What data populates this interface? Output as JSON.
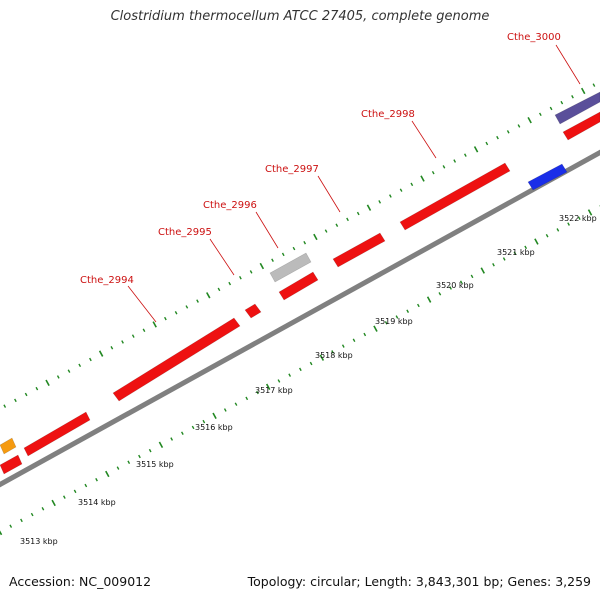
{
  "title": "Clostridium thermocellum ATCC 27405, complete genome",
  "footer": {
    "accession": "Accession: NC_009012",
    "summary": "Topology: circular; Length: 3,843,301 bp; Genes: 3,259"
  },
  "colors": {
    "cds": "#ee1111",
    "pseudo": "#bbbbbb",
    "rna": "#f59a10",
    "rrna": "#1a2ee8",
    "other": "#5a4f9a",
    "backbone": "#808080",
    "tick": "#228822",
    "label": "#cc1111"
  },
  "scale": {
    "unit": "kbp",
    "labels": [
      "3513 kbp",
      "3514 kbp",
      "3515 kbp",
      "3516 kbp",
      "3517 kbp",
      "3518 kbp",
      "3519 kbp",
      "3520 kbp",
      "3521 kbp",
      "3522 kbp"
    ]
  },
  "gene_labels": [
    "Cthe_2994",
    "Cthe_2995",
    "Cthe_2996",
    "Cthe_2997",
    "Cthe_2998",
    "Cthe_3000"
  ]
}
